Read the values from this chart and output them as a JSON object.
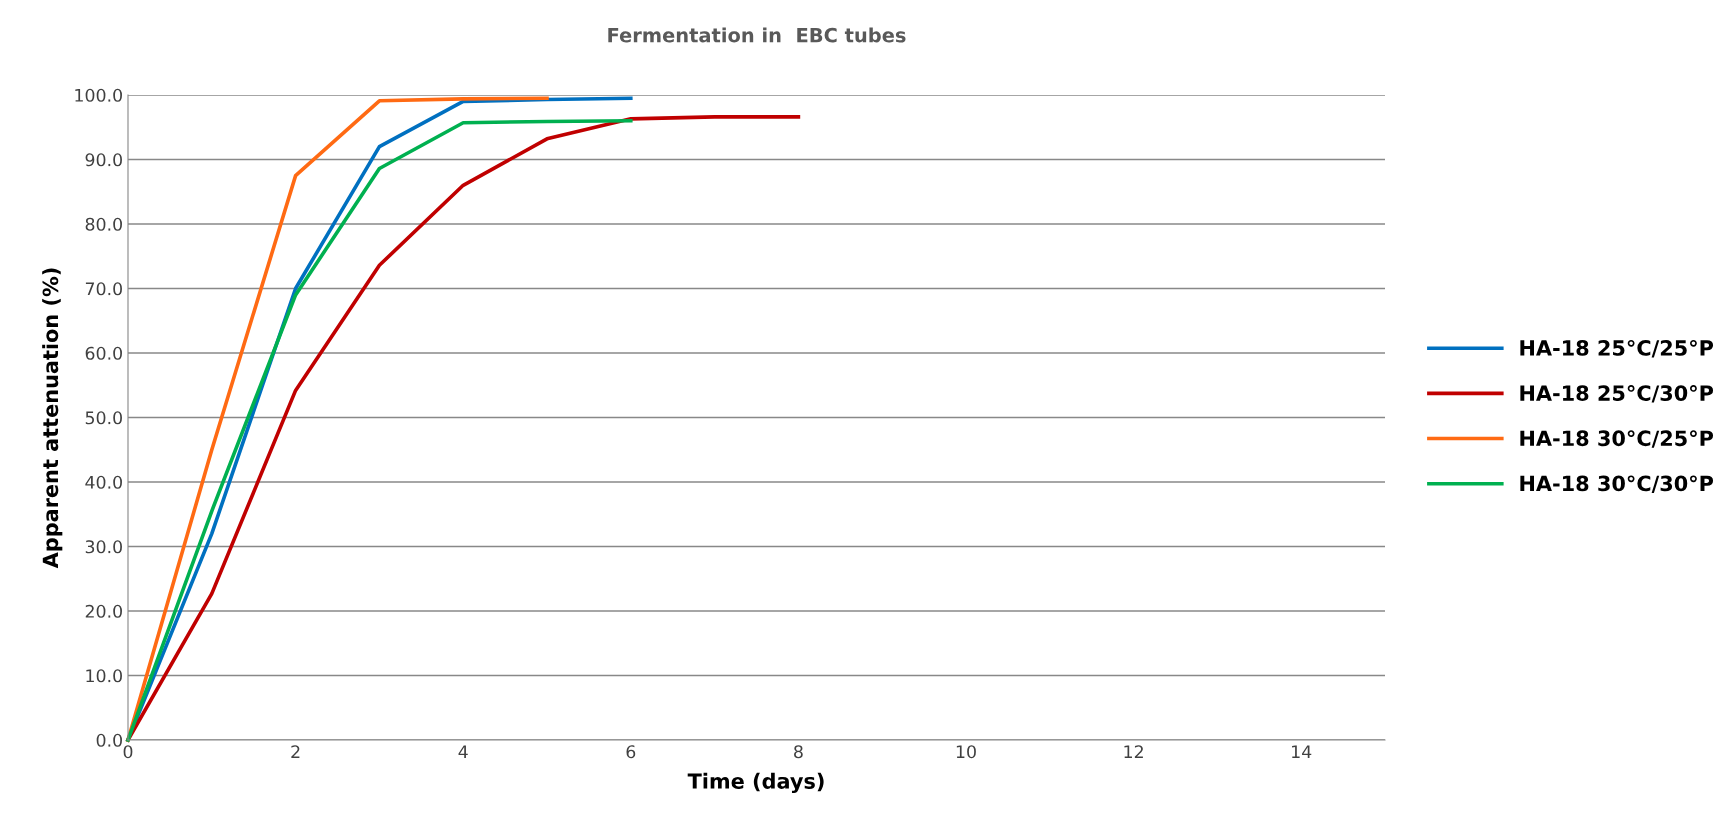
{
  "chart_data": {
    "type": "line",
    "title": "Fermentation in  EBC tubes",
    "xlabel": "Time (days)",
    "ylabel": "Apparent attenuation (%)",
    "xlim": [
      0,
      15
    ],
    "xticks": [
      0,
      2,
      4,
      6,
      8,
      10,
      12,
      14
    ],
    "ylim": [
      0,
      100
    ],
    "yticks": [
      {
        "value": 0,
        "label": "0.0"
      },
      {
        "value": 10,
        "label": "10.0"
      },
      {
        "value": 20,
        "label": "20.0"
      },
      {
        "value": 30,
        "label": "30.0"
      },
      {
        "value": 40,
        "label": "40.0"
      },
      {
        "value": 50,
        "label": "50.0"
      },
      {
        "value": 60,
        "label": "60.0"
      },
      {
        "value": 70,
        "label": "70.0"
      },
      {
        "value": 80,
        "label": "80.0"
      },
      {
        "value": 90,
        "label": "90.0"
      },
      {
        "value": 100,
        "label": "100.0"
      }
    ],
    "grid": "y",
    "legend": "right",
    "marker": "none",
    "line_style": "solid",
    "series": [
      {
        "name": "HA-18 25°C/25°P",
        "color": "#0070c0",
        "x": [
          0,
          1,
          2,
          3,
          4,
          5,
          6
        ],
        "values": [
          0,
          32,
          70,
          92,
          99,
          99.3,
          99.5
        ]
      },
      {
        "name": "HA-18 25°C/30°P",
        "color": "#c00000",
        "x": [
          0,
          1,
          2,
          3,
          4,
          5,
          6,
          7,
          8
        ],
        "values": [
          0,
          22.7,
          54.2,
          73.6,
          86,
          93.2,
          96.3,
          96.6,
          96.6
        ]
      },
      {
        "name": "HA-18 30°C/25°P",
        "color": "#ff6a13",
        "x": [
          0,
          1,
          2,
          3,
          4,
          5
        ],
        "values": [
          0,
          45,
          87.5,
          99.1,
          99.4,
          99.5
        ]
      },
      {
        "name": "HA-18 30°C/30°P",
        "color": "#00b050",
        "x": [
          0,
          1,
          2,
          3,
          4,
          5,
          6
        ],
        "values": [
          0,
          35.5,
          69,
          88.6,
          95.7,
          95.9,
          96
        ]
      }
    ]
  }
}
